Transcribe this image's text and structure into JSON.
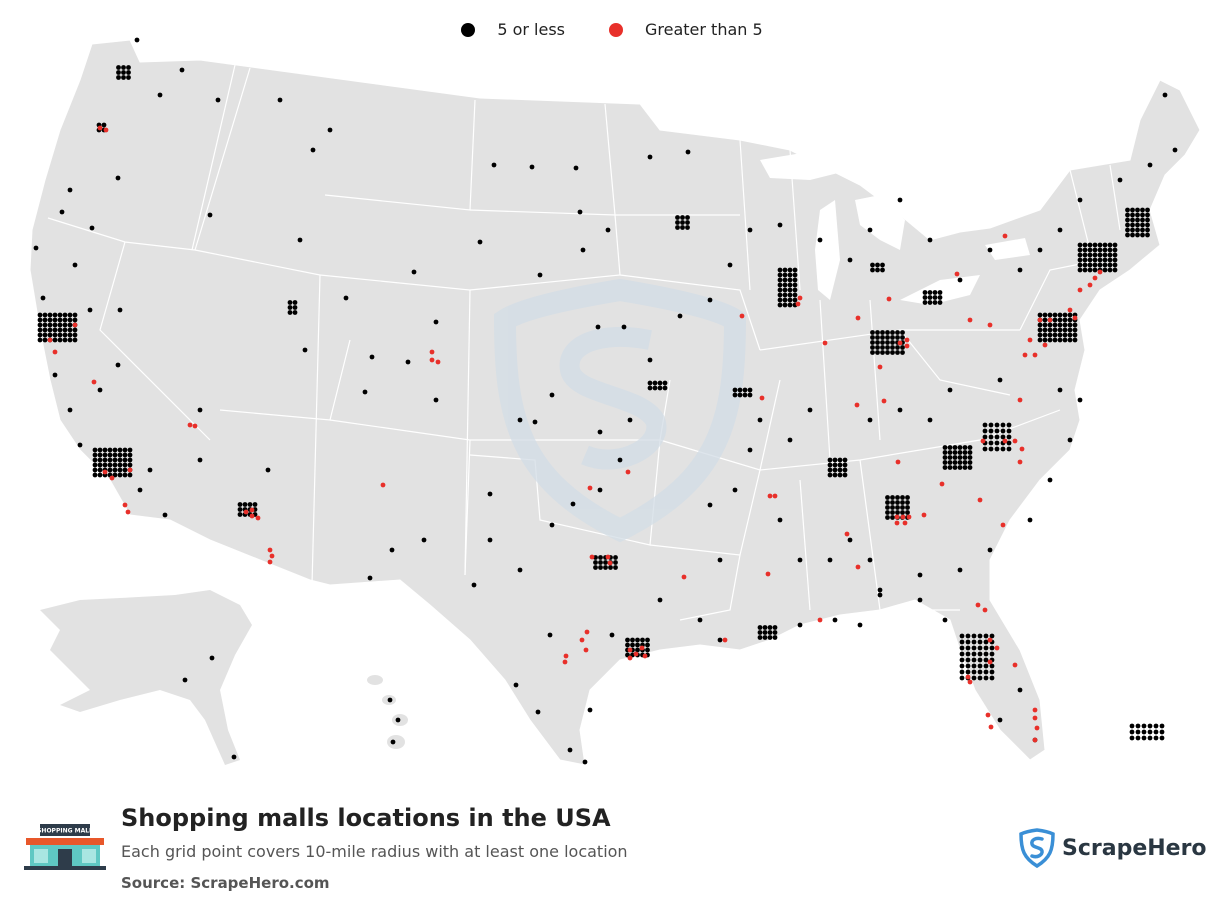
{
  "legend": {
    "items": [
      {
        "label": "5 or less",
        "color": "#000000"
      },
      {
        "label": "Greater than 5",
        "color": "#e8302a"
      }
    ]
  },
  "title": "Shopping malls locations in the USA",
  "subtitle": "Each grid point covers 10-mile radius with at least one location",
  "source": "Source: ScrapeHero.com",
  "brand": {
    "name": "ScrapeHero",
    "icon": "scrapehero-shield-icon"
  },
  "logo": {
    "sign_text": "SHOPPING MALL",
    "icon": "shopping-mall-icon"
  },
  "map": {
    "land_color": "#e2e2e2",
    "border_color": "#ffffff",
    "watermark_color": "#d3dde6",
    "dot_black": "#000000",
    "dot_red": "#e8302a"
  }
}
